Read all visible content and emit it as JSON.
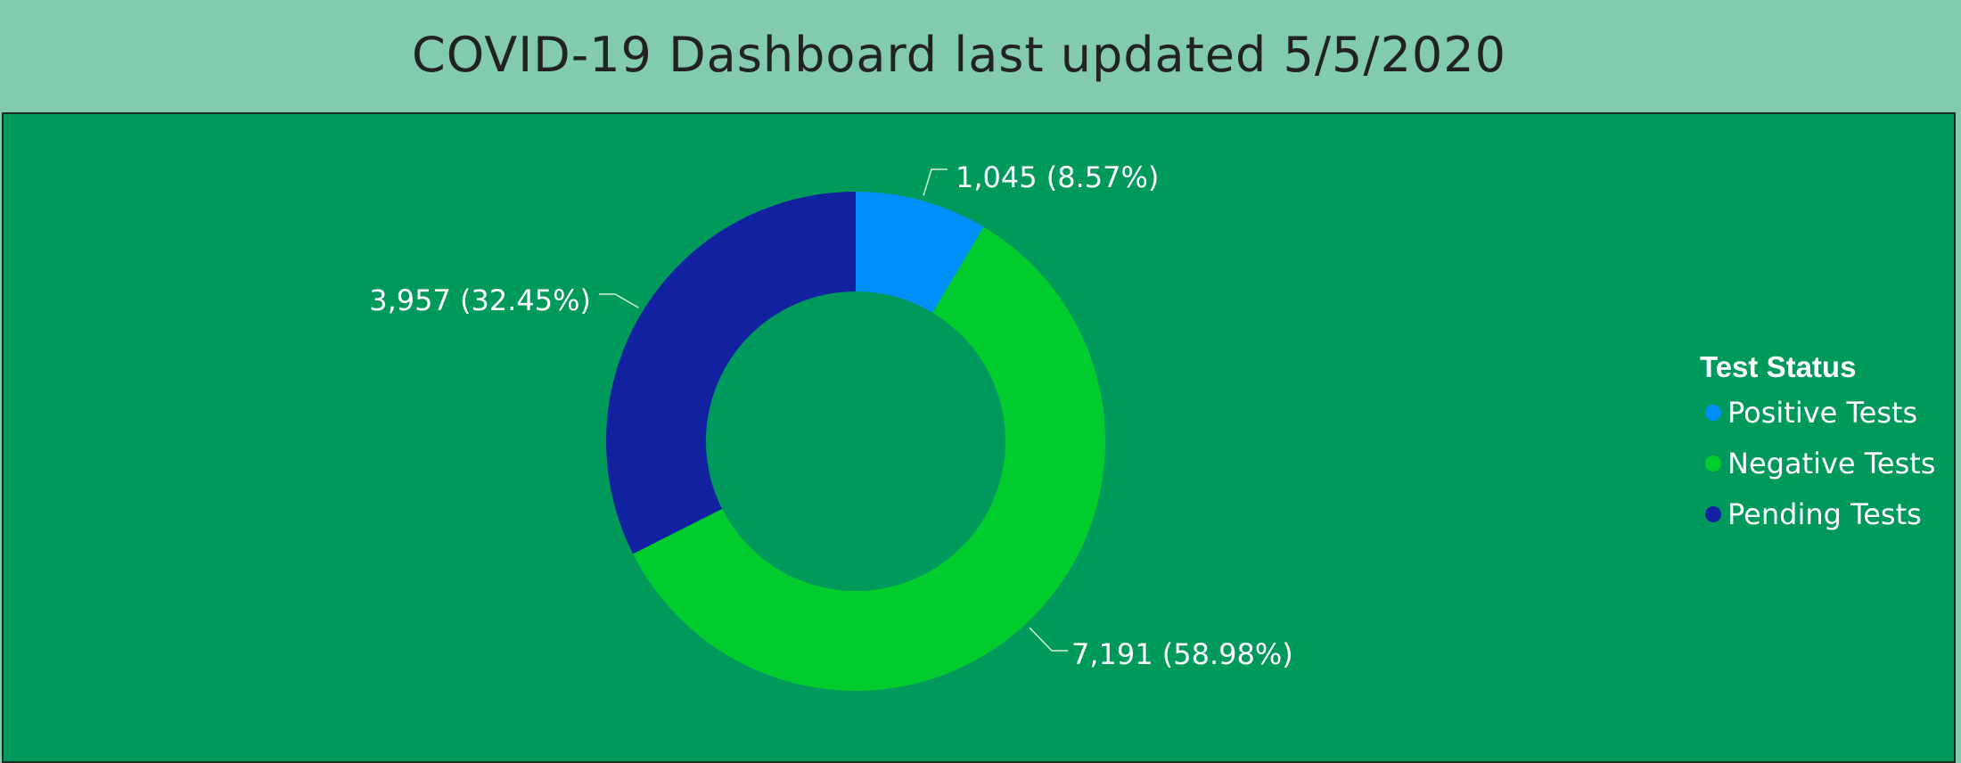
{
  "header": {
    "title": "COVID-19 Dashboard last updated 5/5/2020"
  },
  "chart_data": {
    "type": "pie",
    "variant": "donut",
    "legend": {
      "title": "Test Status",
      "position": "right"
    },
    "series": [
      {
        "name": "Positive Tests",
        "value": 1045,
        "label": "1,045 (8.57%)",
        "color": "#008ffb"
      },
      {
        "name": "Negative Tests",
        "value": 7191,
        "label": "7,191 (58.98%)",
        "color": "#00cc2e"
      },
      {
        "name": "Pending Tests",
        "value": 3957,
        "label": "3,957 (32.45%)",
        "color": "#1121a0"
      }
    ]
  },
  "colors": {
    "header_bg": "#82cbaf",
    "panel_bg": "#00995c",
    "text_light": "#ffffff"
  }
}
